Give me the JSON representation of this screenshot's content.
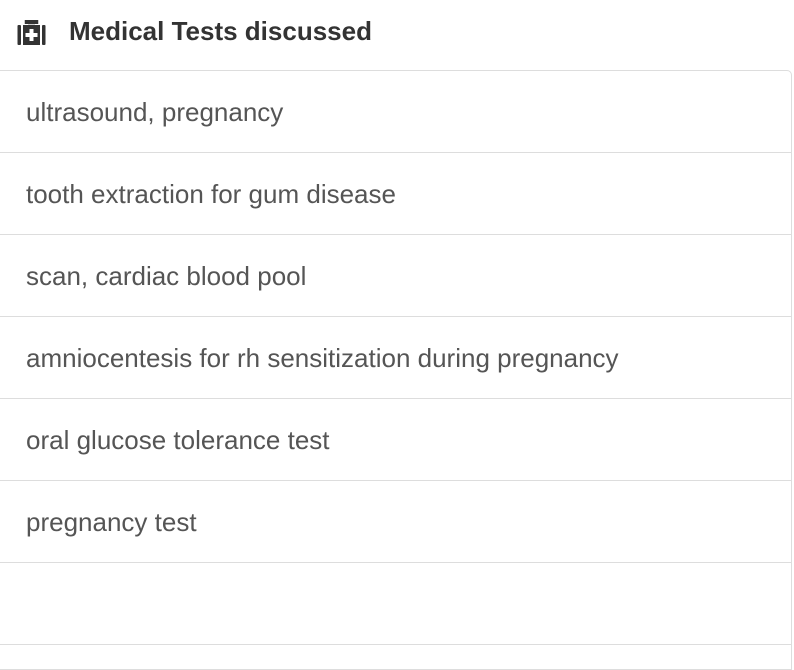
{
  "header": {
    "title": "Medical Tests discussed"
  },
  "list": {
    "items": [
      "ultrasound, pregnancy",
      "tooth extraction for gum disease",
      "scan, cardiac blood pool",
      "amniocentesis for rh sensitization during pregnancy",
      "oral glucose tolerance test",
      "pregnancy test"
    ]
  }
}
